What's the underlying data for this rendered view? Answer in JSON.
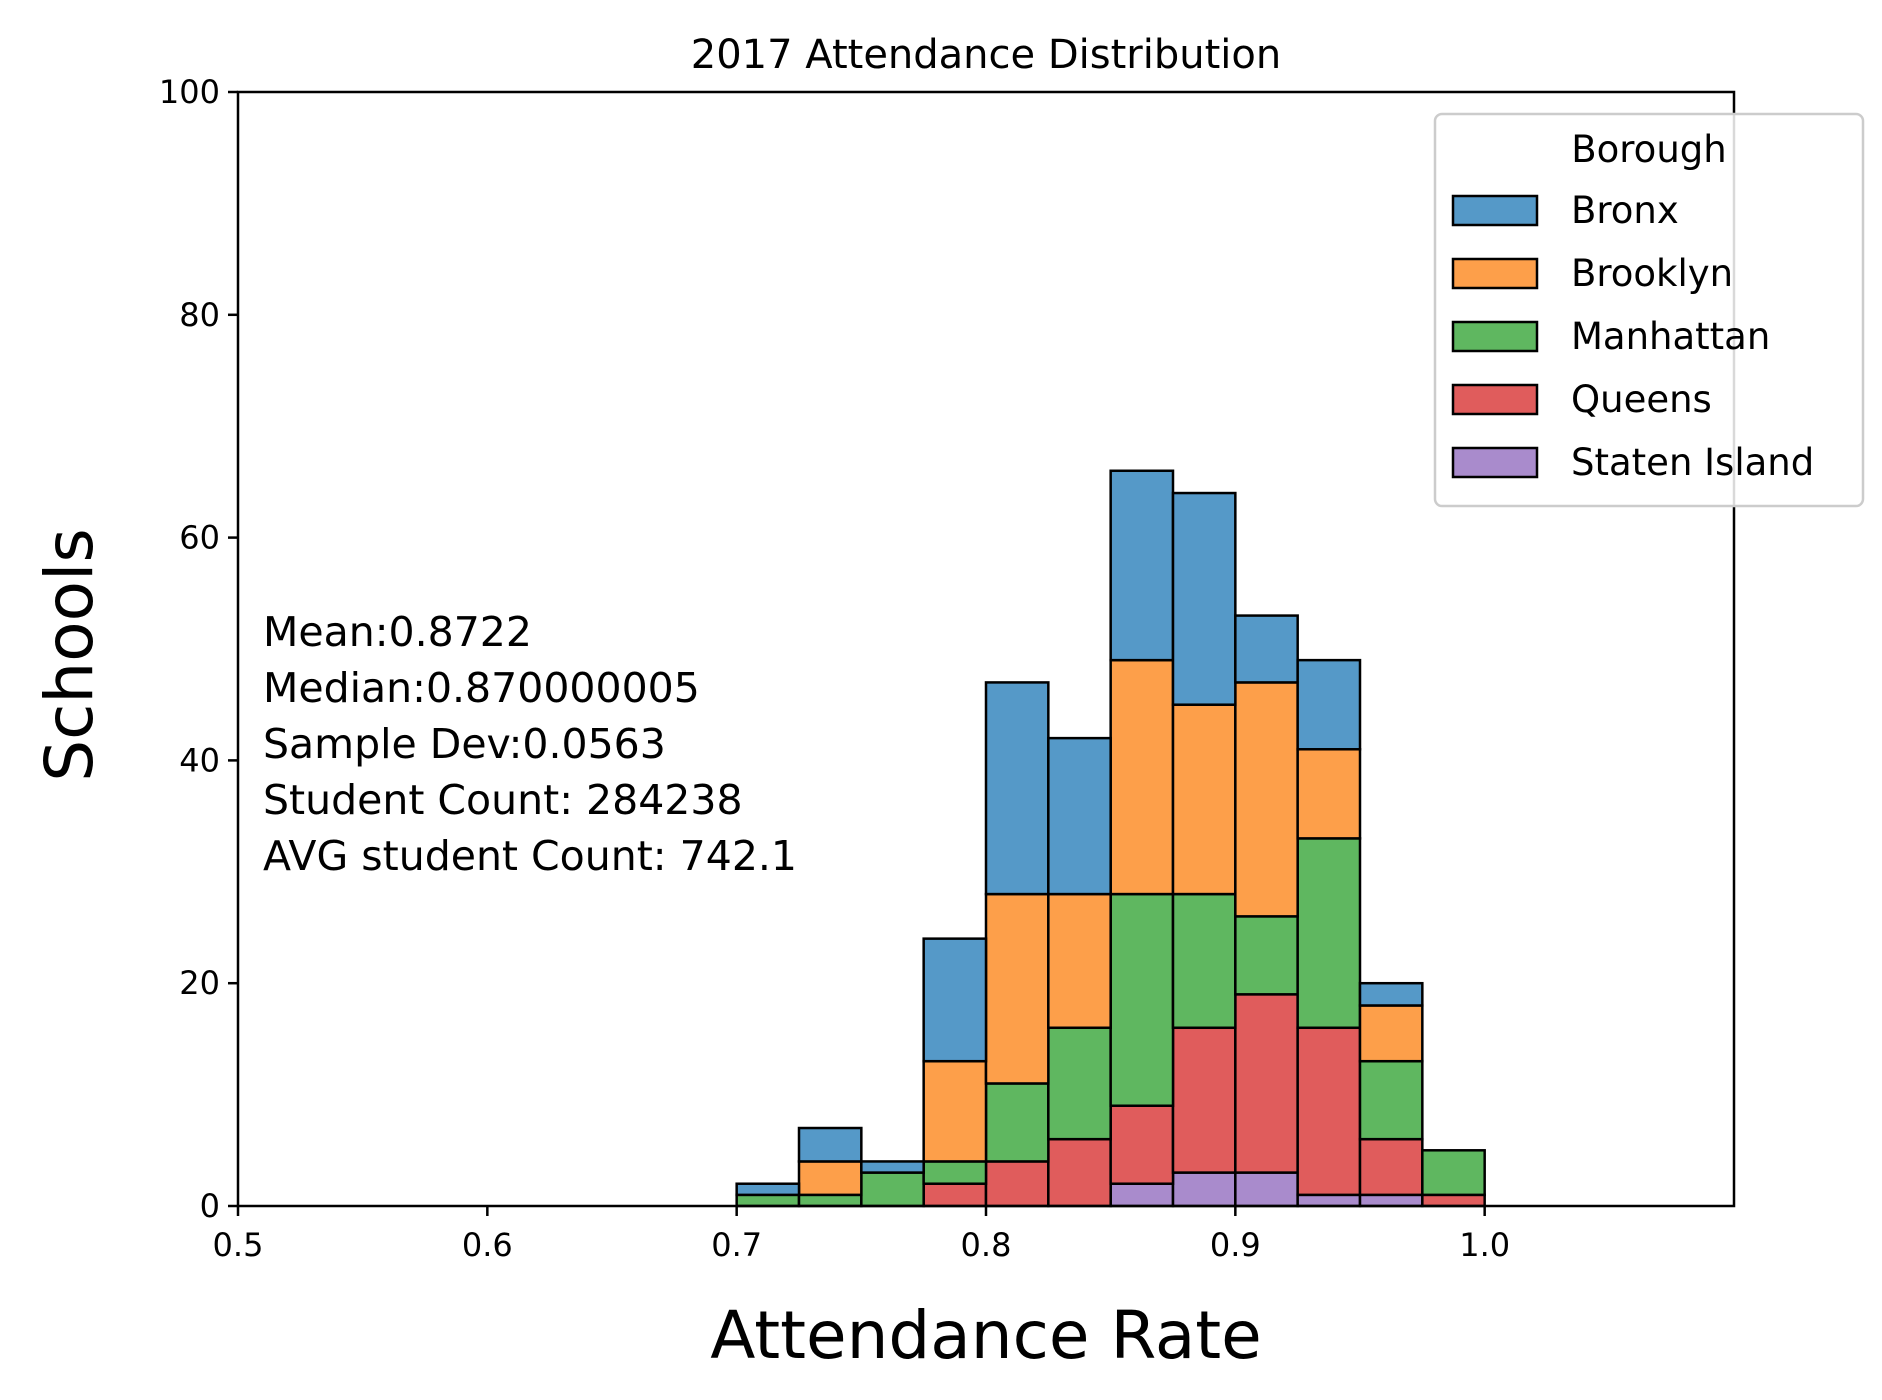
{
  "chart_data": {
    "type": "bar",
    "stacked": true,
    "title": "2017 Attendance Distribution",
    "xlabel": "Attendance Rate",
    "ylabel": "Schools",
    "xlim": [
      0.5,
      1.1
    ],
    "ylim": [
      0,
      100
    ],
    "xticks": [
      "0.5",
      "0.6",
      "0.7",
      "0.8",
      "0.9",
      "1.0"
    ],
    "yticks": [
      "0",
      "20",
      "40",
      "60",
      "80",
      "100"
    ],
    "bin_edges": [
      0.5,
      0.525,
      0.55,
      0.575,
      0.6,
      0.625,
      0.65,
      0.675,
      0.7,
      0.725,
      0.75,
      0.775,
      0.8,
      0.825,
      0.85,
      0.875,
      0.9,
      0.925,
      0.95,
      0.975,
      1.0,
      1.025
    ],
    "series": [
      {
        "name": "Staten Island",
        "color": "#a98bcc",
        "values": [
          0,
          0,
          0,
          0,
          0,
          0,
          0,
          0,
          0,
          0,
          0,
          0,
          0,
          0,
          2,
          3,
          3,
          1,
          1,
          0,
          0
        ]
      },
      {
        "name": "Queens",
        "color": "#e05c5c",
        "values": [
          0,
          0,
          0,
          0,
          0,
          0,
          0,
          0,
          0,
          0,
          0,
          2,
          4,
          6,
          7,
          13,
          16,
          15,
          5,
          1,
          0
        ]
      },
      {
        "name": "Manhattan",
        "color": "#5fb760",
        "values": [
          0,
          0,
          0,
          0,
          0,
          0,
          0,
          0,
          1,
          1,
          3,
          2,
          7,
          10,
          19,
          12,
          7,
          17,
          7,
          4,
          0
        ]
      },
      {
        "name": "Brooklyn",
        "color": "#fd9f4a",
        "values": [
          0,
          0,
          0,
          0,
          0,
          0,
          0,
          0,
          0,
          3,
          0,
          9,
          17,
          12,
          21,
          17,
          21,
          8,
          5,
          0,
          0
        ]
      },
      {
        "name": "Bronx",
        "color": "#5599c8",
        "values": [
          0,
          0,
          0,
          0,
          0,
          0,
          0,
          0,
          1,
          3,
          1,
          11,
          19,
          14,
          17,
          19,
          6,
          8,
          2,
          0,
          0
        ]
      }
    ],
    "legend": {
      "title": "Borough",
      "placement": "top-right",
      "order": [
        "Bronx",
        "Brooklyn",
        "Manhattan",
        "Queens",
        "Staten Island"
      ]
    },
    "annotations": [
      "Mean:0.8722",
      "Median:0.870000005",
      "Sample Dev:0.0563",
      "Student Count: 284238",
      "AVG student Count: 742.1"
    ],
    "grid": false
  }
}
